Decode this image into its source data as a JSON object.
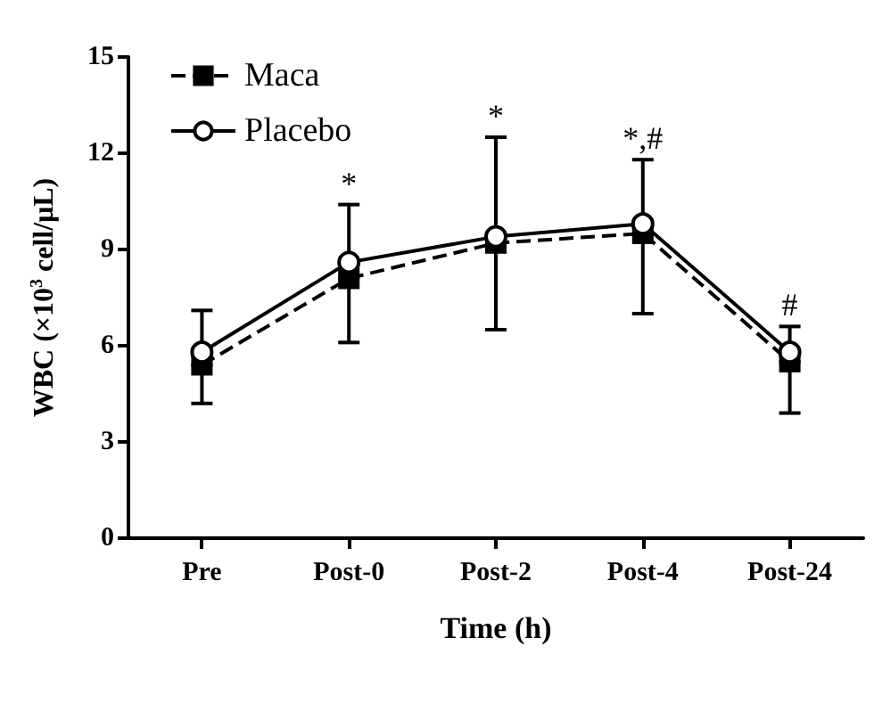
{
  "chart_data": {
    "type": "line",
    "xlabel": "Time (h)",
    "ylabel": "WBC (×10$^{3}$ cell/μL)",
    "categories": [
      "Pre",
      "Post-0",
      "Post-2",
      "Post-4",
      "Post-24"
    ],
    "series": [
      {
        "name": "Maca",
        "color": "#000000",
        "marker": "square",
        "line_style": "dashed",
        "values": [
          5.4,
          8.1,
          9.2,
          9.5,
          5.5
        ],
        "errors": [
          [
            4.2,
            5.4
          ],
          [
            6.1,
            8.1
          ],
          [
            6.5,
            9.2
          ],
          [
            7.0,
            9.5
          ],
          [
            3.9,
            5.5
          ]
        ]
      },
      {
        "name": "Placebo",
        "color": "#000000",
        "marker": "circle",
        "line_style": "solid",
        "values": [
          5.8,
          8.6,
          9.4,
          9.8,
          5.8
        ],
        "errors": [
          [
            5.8,
            7.1
          ],
          [
            8.6,
            10.4
          ],
          [
            9.4,
            12.5
          ],
          [
            9.8,
            11.8
          ],
          [
            5.8,
            6.6
          ]
        ]
      }
    ],
    "ylim": [
      0,
      15
    ],
    "yticks": [
      0,
      3,
      6,
      9,
      12,
      15
    ],
    "grid": false,
    "legend": "top left",
    "annotations": [
      {
        "text": "*",
        "x": "Post-0",
        "y": 10.4
      },
      {
        "text": "*",
        "x": "Post-2",
        "y": 12.5
      },
      {
        "text": "*,#",
        "x": "Post-4",
        "y": 11.8
      },
      {
        "text": "#",
        "x": "Post-24",
        "y": 6.6
      }
    ]
  }
}
